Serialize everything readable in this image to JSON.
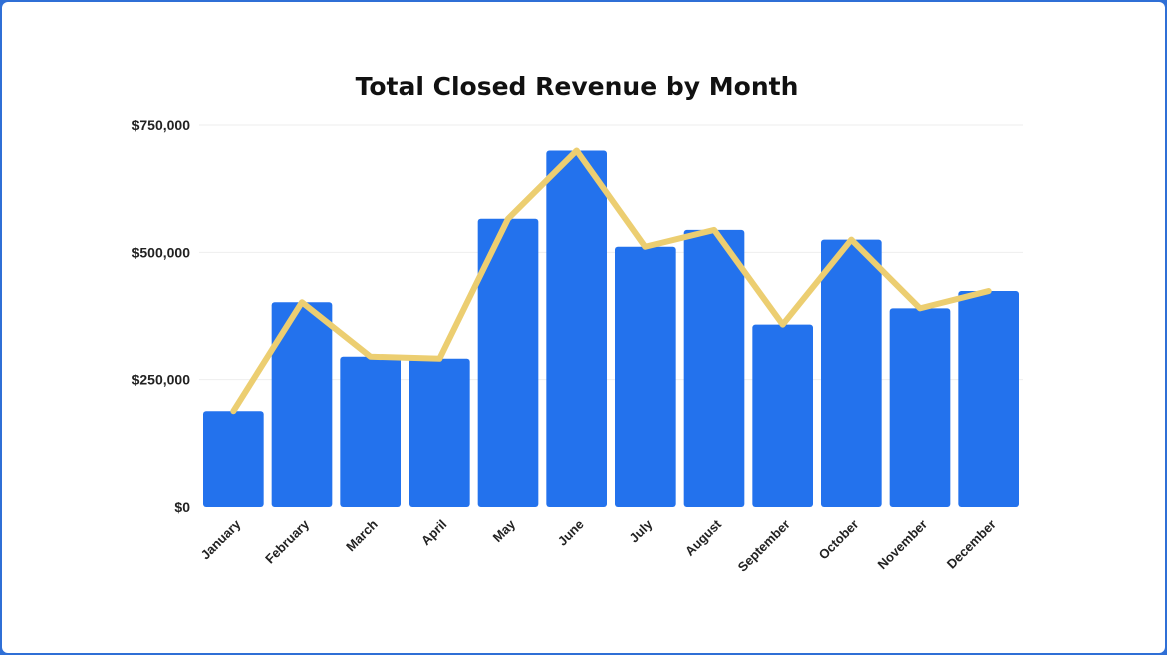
{
  "chart_data": {
    "type": "bar",
    "title": "Total Closed Revenue by Month",
    "xlabel": "",
    "ylabel": "",
    "categories": [
      "January",
      "February",
      "March",
      "April",
      "May",
      "June",
      "July",
      "August",
      "September",
      "October",
      "November",
      "December"
    ],
    "series": [
      {
        "type": "bar",
        "values": [
          188000,
          402000,
          295000,
          291000,
          566000,
          700000,
          511000,
          544000,
          358000,
          525000,
          390000,
          424000
        ],
        "color": "#2372ed"
      },
      {
        "type": "line",
        "values": [
          188000,
          402000,
          295000,
          291000,
          566000,
          700000,
          511000,
          544000,
          358000,
          525000,
          390000,
          424000
        ],
        "color": "#ecce71"
      }
    ],
    "ylim": [
      0,
      750000
    ],
    "yticks": [
      0,
      250000,
      500000,
      750000
    ],
    "ytick_labels": [
      "$0",
      "$250,000",
      "$500,000",
      "$750,000"
    ],
    "grid": true,
    "legend": "none"
  }
}
